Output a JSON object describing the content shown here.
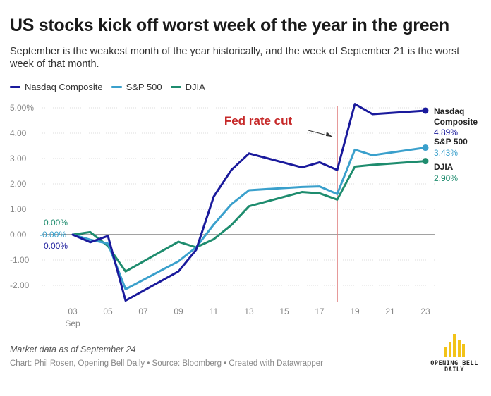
{
  "title": "US stocks kick off worst week of the year in the green",
  "subtitle": "September is the weakest month of the year historically, and the week of September 21 is the worst week of that month.",
  "note": "Market data as of September 24",
  "credit": "Chart: Phil Rosen, Opening Bell Daily • Source: Bloomberg • Created with Datawrapper",
  "logo": {
    "line1": "OPENING BELL",
    "line2": "DAILY"
  },
  "chart_data": {
    "type": "line",
    "title": "US stocks kick off worst week of the year in the green",
    "x_unit": "day of September",
    "x_month_label": "Sep",
    "x_ticks": [
      "03",
      "05",
      "07",
      "09",
      "11",
      "13",
      "15",
      "17",
      "19",
      "21",
      "23"
    ],
    "y_ticks": [
      "5.00%",
      "4.00",
      "3.00",
      "2.00",
      "1.00",
      "0.00",
      "-1.00",
      "-2.00"
    ],
    "ylim": [
      -2.5,
      5.3
    ],
    "annotation": {
      "label": "Fed rate cut",
      "x": 18
    },
    "series": [
      {
        "name": "Nasdaq Composite",
        "color": "#1a1a9c",
        "x": [
          3,
          4,
          5,
          6,
          9,
          10,
          11,
          12,
          13,
          16,
          17,
          18,
          19,
          20,
          23
        ],
        "values": [
          0,
          -0.3,
          -0.05,
          -2.6,
          -1.45,
          -0.6,
          1.5,
          2.55,
          3.2,
          2.65,
          2.85,
          2.55,
          5.15,
          4.75,
          4.89
        ],
        "start_label": "0.00%",
        "end_label_lines": [
          "Nasdaq",
          "Composite"
        ],
        "end_value_label": "4.89%"
      },
      {
        "name": "S&P 500",
        "color": "#3aa0cc",
        "x": [
          3,
          4,
          5,
          6,
          9,
          10,
          11,
          12,
          13,
          16,
          17,
          18,
          19,
          20,
          23
        ],
        "values": [
          0,
          -0.2,
          -0.35,
          -2.15,
          -1.05,
          -0.5,
          0.4,
          1.2,
          1.75,
          1.88,
          1.9,
          1.6,
          3.35,
          3.13,
          3.43
        ],
        "start_label": "-0.00%",
        "end_label_lines": [
          "S&P 500"
        ],
        "end_value_label": "3.43%"
      },
      {
        "name": "DJIA",
        "color": "#1e8c6e",
        "x": [
          3,
          4,
          5,
          6,
          9,
          10,
          11,
          12,
          13,
          16,
          17,
          18,
          19,
          20,
          23
        ],
        "values": [
          0,
          0.1,
          -0.45,
          -1.45,
          -0.28,
          -0.5,
          -0.18,
          0.38,
          1.12,
          1.68,
          1.63,
          1.38,
          2.68,
          2.75,
          2.9
        ],
        "start_label": "0.00%",
        "end_label_lines": [
          "DJIA"
        ],
        "end_value_label": "2.90%"
      }
    ],
    "legend_position": "top-left",
    "grid": true
  }
}
